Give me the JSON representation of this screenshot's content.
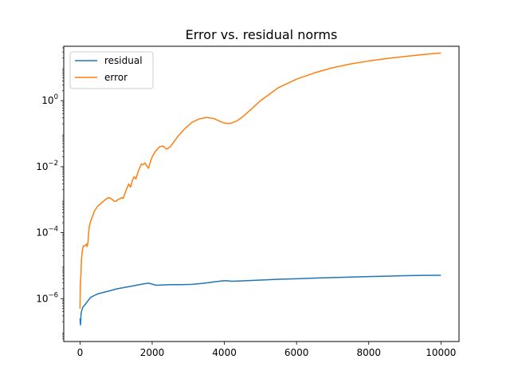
{
  "chart_data": {
    "type": "line",
    "title": "Error vs. residual norms",
    "xlabel": "",
    "ylabel": "",
    "yscale": "log",
    "xlim": [
      -450,
      10500
    ],
    "ylim_exponent": [
      -7.3,
      1.65
    ],
    "x_ticks": [
      0,
      2000,
      4000,
      6000,
      8000,
      10000
    ],
    "x_tick_labels": [
      "0",
      "2000",
      "4000",
      "6000",
      "8000",
      "10000"
    ],
    "y_ticks_exponent": [
      -6,
      -4,
      -2,
      0
    ],
    "y_tick_labels": [
      "10",
      "10",
      "10",
      "10"
    ],
    "y_tick_exponent_labels": [
      "−6",
      "−4",
      "−2",
      "0"
    ],
    "grid": false,
    "legend": {
      "placement": "top-left",
      "entries": [
        "residual",
        "error"
      ]
    },
    "series": [
      {
        "name": "residual",
        "color": "#1f77b4",
        "x": [
          0,
          15,
          30,
          50,
          80,
          120,
          160,
          200,
          250,
          300,
          400,
          500,
          600,
          800,
          1000,
          1200,
          1400,
          1600,
          1800,
          1900,
          2000,
          2100,
          2300,
          2500,
          2800,
          3100,
          3400,
          3700,
          4000,
          4100,
          4200,
          4500,
          5000,
          5500,
          6000,
          6500,
          7000,
          7500,
          8000,
          8500,
          9000,
          9500,
          10000
        ],
        "y": [
          2.5e-07,
          1.6e-07,
          3.5e-07,
          4.5e-07,
          5.5e-07,
          6.2e-07,
          7e-07,
          8e-07,
          9.5e-07,
          1.1e-06,
          1.25e-06,
          1.4e-06,
          1.5e-06,
          1.7e-06,
          1.95e-06,
          2.15e-06,
          2.35e-06,
          2.6e-06,
          2.85e-06,
          2.95e-06,
          2.75e-06,
          2.55e-06,
          2.6e-06,
          2.65e-06,
          2.65e-06,
          2.7e-06,
          2.9e-06,
          3.2e-06,
          3.5e-06,
          3.45e-06,
          3.35e-06,
          3.45e-06,
          3.65e-06,
          3.85e-06,
          4e-06,
          4.2e-06,
          4.35e-06,
          4.5e-06,
          4.65e-06,
          4.8e-06,
          4.95e-06,
          5.05e-06,
          5.1e-06
        ]
      },
      {
        "name": "error",
        "color": "#ff7f0e",
        "x": [
          0,
          10,
          25,
          40,
          60,
          80,
          100,
          140,
          180,
          200,
          220,
          240,
          260,
          300,
          350,
          400,
          450,
          500,
          600,
          700,
          750,
          800,
          850,
          900,
          950,
          1000,
          1050,
          1100,
          1150,
          1200,
          1250,
          1300,
          1350,
          1400,
          1450,
          1500,
          1550,
          1600,
          1650,
          1700,
          1750,
          1800,
          1850,
          1900,
          1950,
          2000,
          2100,
          2200,
          2300,
          2400,
          2500,
          2700,
          2900,
          3100,
          3300,
          3500,
          3700,
          3900,
          4000,
          4100,
          4200,
          4350,
          4500,
          4700,
          5000,
          5500,
          6000,
          6500,
          7000,
          7500,
          8000,
          8500,
          9000,
          9500,
          10000
        ],
        "y": [
          5e-07,
          3e-06,
          5e-06,
          1.5e-05,
          2.5e-05,
          3.5e-05,
          4e-05,
          4e-05,
          4.5e-05,
          3.8e-05,
          5e-05,
          0.0001,
          0.00016,
          0.00023,
          0.00032,
          0.00045,
          0.00055,
          0.00065,
          0.0008,
          0.001,
          0.0011,
          0.00115,
          0.0011,
          0.001,
          0.0009,
          0.0009,
          0.001,
          0.00105,
          0.00115,
          0.0011,
          0.0016,
          0.0022,
          0.003,
          0.0024,
          0.0038,
          0.005,
          0.0042,
          0.0065,
          0.009,
          0.012,
          0.0115,
          0.013,
          0.0105,
          0.009,
          0.014,
          0.02,
          0.03,
          0.04,
          0.042,
          0.034,
          0.04,
          0.08,
          0.14,
          0.22,
          0.28,
          0.31,
          0.29,
          0.23,
          0.21,
          0.205,
          0.21,
          0.245,
          0.32,
          0.5,
          1.0,
          2.5,
          4.5,
          7.0,
          10.0,
          13.0,
          16.0,
          19.0,
          22.0,
          25.0,
          28.0
        ]
      }
    ]
  }
}
